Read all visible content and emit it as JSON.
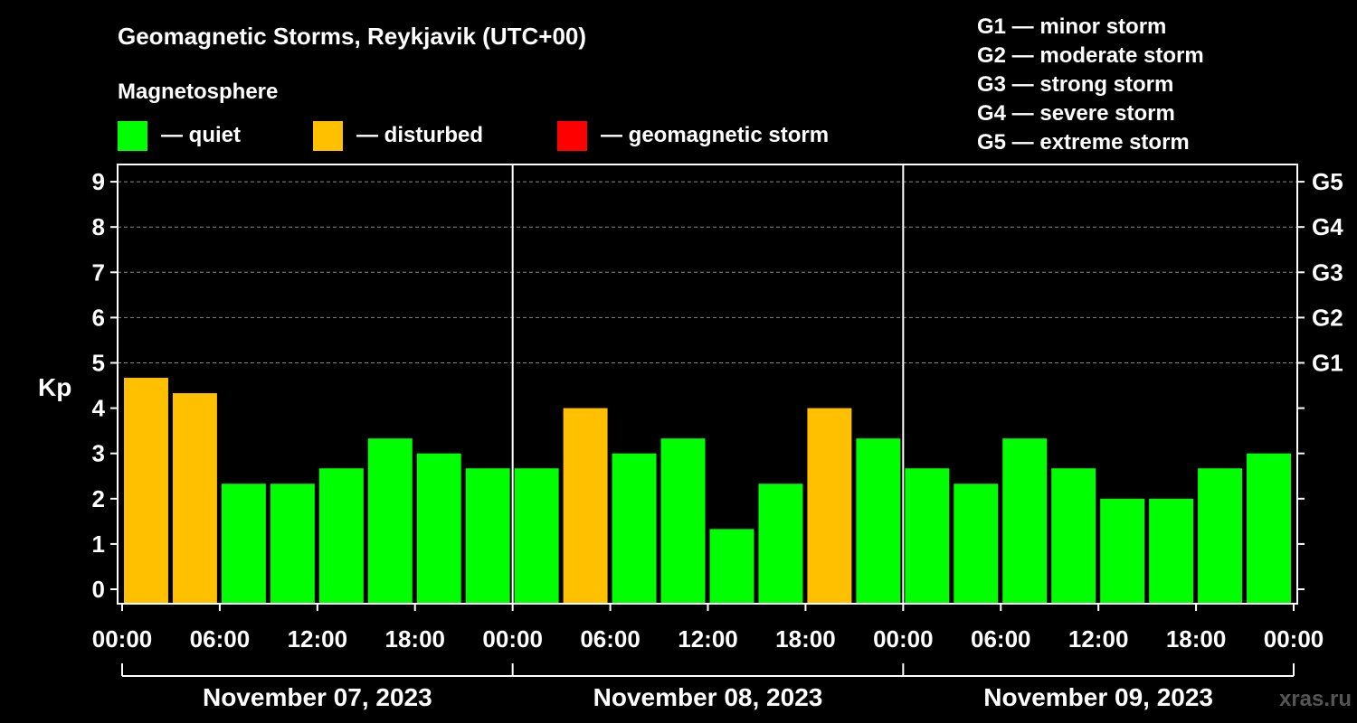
{
  "title": "Geomagnetic Storms, Reykjavik (UTC+00)",
  "legend": {
    "heading": "Magnetosphere",
    "items": [
      {
        "label": "— quiet",
        "color": "#00ff00"
      },
      {
        "label": "— disturbed",
        "color": "#ffc000"
      },
      {
        "label": "— geomagnetic storm",
        "color": "#ff0000"
      }
    ]
  },
  "storm_scale": [
    "G1 — minor storm",
    "G2 — moderate storm",
    "G3 — strong storm",
    "G4 — severe storm",
    "G5 — extreme storm"
  ],
  "watermark": "xras.ru",
  "chart_data": {
    "type": "bar",
    "ylabel": "Kp",
    "ylim": [
      0,
      9
    ],
    "yticks": [
      "0",
      "1",
      "2",
      "3",
      "4",
      "5",
      "6",
      "7",
      "8",
      "9"
    ],
    "right_ticks": [
      {
        "value": 5,
        "label": "G1"
      },
      {
        "value": 6,
        "label": "G2"
      },
      {
        "value": 7,
        "label": "G3"
      },
      {
        "value": 8,
        "label": "G4"
      },
      {
        "value": 9,
        "label": "G5"
      }
    ],
    "xticks": [
      "00:00",
      "06:00",
      "12:00",
      "18:00",
      "00:00",
      "06:00",
      "12:00",
      "18:00",
      "00:00",
      "06:00",
      "12:00",
      "18:00",
      "00:00"
    ],
    "days": [
      "November 07, 2023",
      "November 08, 2023",
      "November 09, 2023"
    ],
    "interval_hours": 3,
    "values": [
      4.67,
      4.33,
      2.33,
      2.33,
      2.67,
      3.33,
      3.0,
      2.67,
      2.67,
      4.0,
      3.0,
      3.33,
      1.33,
      2.33,
      4.0,
      3.33,
      2.67,
      2.33,
      3.33,
      2.67,
      2.0,
      2.0,
      2.67,
      3.0
    ],
    "status": [
      "disturbed",
      "disturbed",
      "quiet",
      "quiet",
      "quiet",
      "quiet",
      "quiet",
      "quiet",
      "quiet",
      "disturbed",
      "quiet",
      "quiet",
      "quiet",
      "quiet",
      "disturbed",
      "quiet",
      "quiet",
      "quiet",
      "quiet",
      "quiet",
      "quiet",
      "quiet",
      "quiet",
      "quiet"
    ],
    "colors": {
      "quiet": "#00ff00",
      "disturbed": "#ffc000",
      "storm": "#ff0000"
    },
    "grid": true
  }
}
